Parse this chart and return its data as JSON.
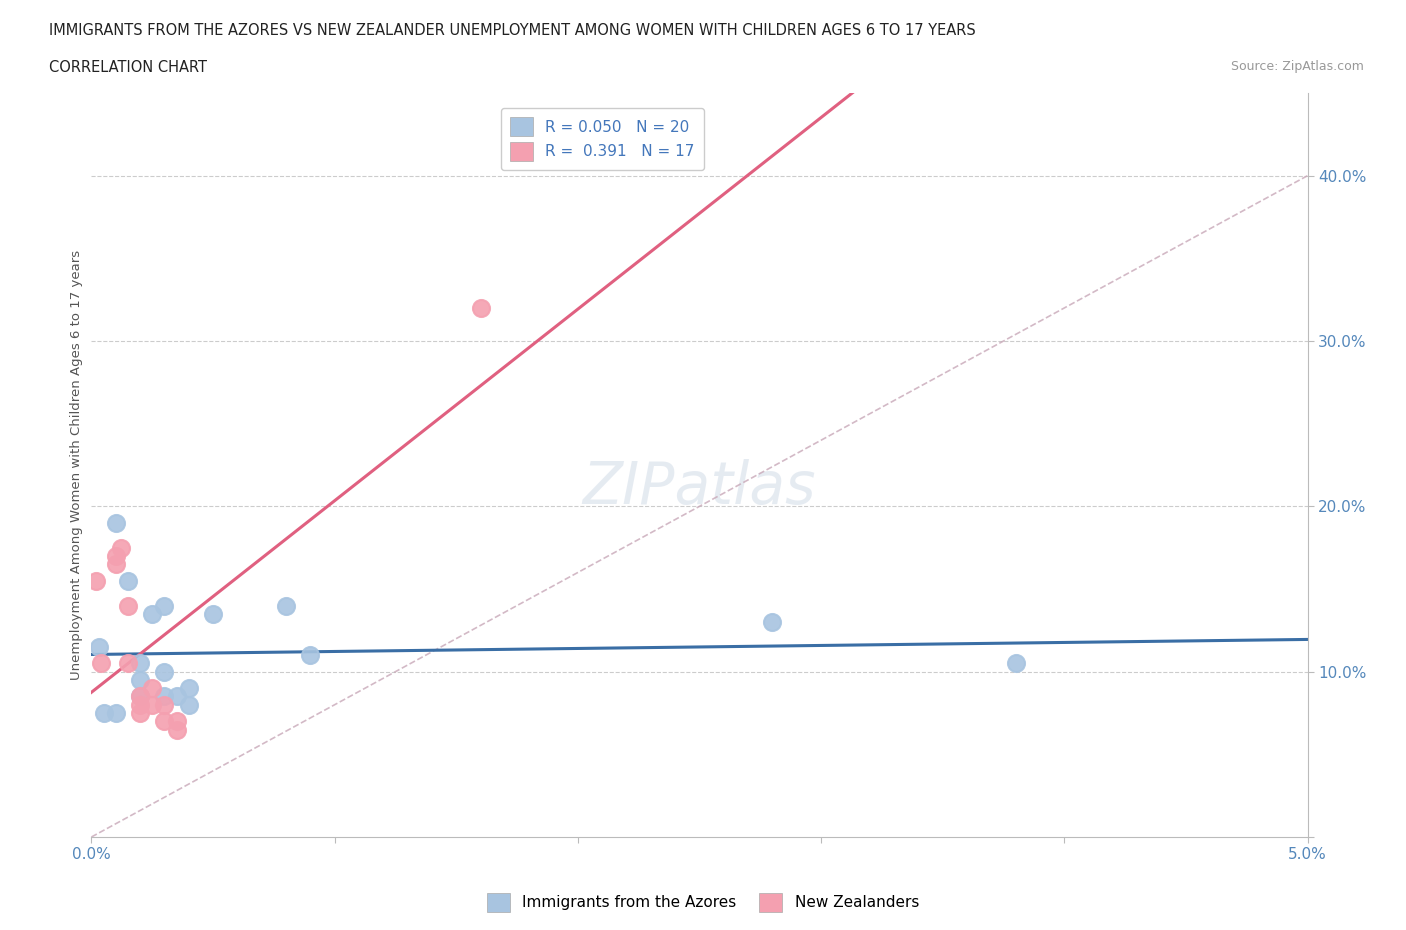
{
  "title_line1": "IMMIGRANTS FROM THE AZORES VS NEW ZEALANDER UNEMPLOYMENT AMONG WOMEN WITH CHILDREN AGES 6 TO 17 YEARS",
  "title_line2": "CORRELATION CHART",
  "source": "Source: ZipAtlas.com",
  "ylabel": "Unemployment Among Women with Children Ages 6 to 17 years",
  "xlim": [
    0.0,
    0.05
  ],
  "ylim": [
    0.0,
    0.45
  ],
  "xticks": [
    0.0,
    0.01,
    0.02,
    0.03,
    0.04,
    0.05
  ],
  "xticklabels": [
    "0.0%",
    "",
    "",
    "",
    "",
    "5.0%"
  ],
  "yticks": [
    0.0,
    0.1,
    0.2,
    0.3,
    0.4
  ],
  "yticklabels": [
    "",
    "10.0%",
    "20.0%",
    "30.0%",
    "40.0%"
  ],
  "blue_R": 0.05,
  "blue_N": 20,
  "pink_R": 0.391,
  "pink_N": 17,
  "blue_color": "#a8c4e0",
  "pink_color": "#f4a0b0",
  "blue_line_color": "#3a6ea5",
  "pink_line_color": "#e06080",
  "diag_line_color": "#c8a8b8",
  "grid_color": "#cccccc",
  "background_color": "#ffffff",
  "watermark": "ZIPatlas",
  "blue_scatter_x": [
    0.0003,
    0.0005,
    0.001,
    0.001,
    0.0015,
    0.002,
    0.002,
    0.002,
    0.0025,
    0.003,
    0.003,
    0.003,
    0.0035,
    0.004,
    0.004,
    0.005,
    0.008,
    0.009,
    0.028,
    0.038
  ],
  "blue_scatter_y": [
    0.115,
    0.075,
    0.075,
    0.19,
    0.155,
    0.105,
    0.085,
    0.095,
    0.135,
    0.1,
    0.085,
    0.14,
    0.085,
    0.08,
    0.09,
    0.135,
    0.14,
    0.11,
    0.13,
    0.105
  ],
  "pink_scatter_x": [
    0.0002,
    0.0004,
    0.001,
    0.001,
    0.0012,
    0.0015,
    0.0015,
    0.002,
    0.002,
    0.002,
    0.0025,
    0.0025,
    0.003,
    0.003,
    0.0035,
    0.0035,
    0.016
  ],
  "pink_scatter_y": [
    0.155,
    0.105,
    0.17,
    0.165,
    0.175,
    0.14,
    0.105,
    0.085,
    0.08,
    0.075,
    0.08,
    0.09,
    0.07,
    0.08,
    0.065,
    0.07,
    0.32
  ],
  "legend1_label": "Immigrants from the Azores",
  "legend2_label": "New Zealanders"
}
